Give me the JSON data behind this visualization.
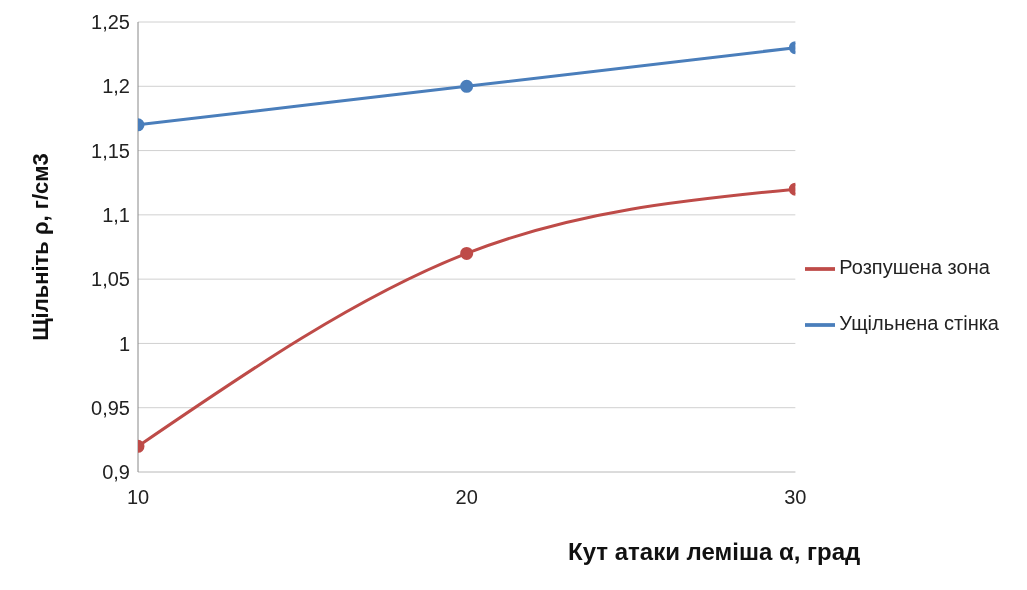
{
  "chart_data": {
    "type": "line",
    "xlabel": "Кут атаки леміша α, град",
    "ylabel": "Щільніть ρ, г/см3",
    "x": [
      10,
      20,
      30
    ],
    "series": [
      {
        "name": "Ущільнена стінка",
        "color": "#4a7ebb",
        "values": [
          1.17,
          1.2,
          1.23
        ]
      },
      {
        "name": "Розпушена зона",
        "color": "#be4b48",
        "values": [
          0.92,
          1.07,
          1.12
        ]
      }
    ],
    "xlim": [
      10,
      30
    ],
    "xticks": [
      10,
      20,
      30
    ],
    "ylim": [
      0.9,
      1.25
    ],
    "yticks": [
      {
        "value": 0.9,
        "label": "0,9"
      },
      {
        "value": 0.95,
        "label": "0,95"
      },
      {
        "value": 1,
        "label": "1"
      },
      {
        "value": 1.05,
        "label": "1,05"
      },
      {
        "value": 1.1,
        "label": "1,1"
      },
      {
        "value": 1.15,
        "label": "1,15"
      },
      {
        "value": 1.2,
        "label": "1,2"
      },
      {
        "value": 1.25,
        "label": "1,25"
      }
    ],
    "grid": "y",
    "legend": "right",
    "marker": "circle",
    "line_style": "solid"
  }
}
